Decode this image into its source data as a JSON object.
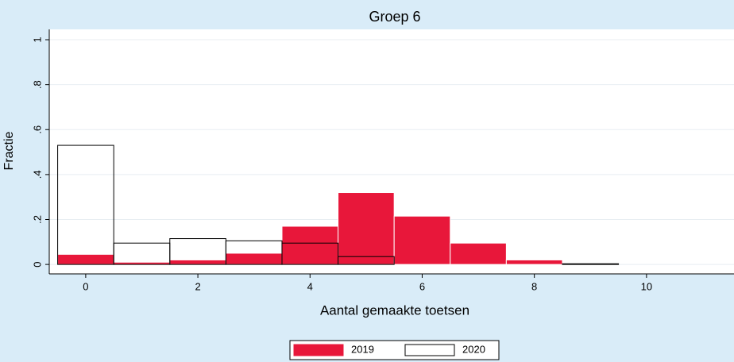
{
  "chart_data": {
    "type": "histogram",
    "title": "Groep 6",
    "x_label": "Aantal gemaakte toetsen",
    "y_label": "Fractie",
    "series": [
      {
        "name": "2019",
        "color": "#e8173a",
        "edgecolor": "#ffffff",
        "bins": [
          -0.5,
          0.5,
          1.5,
          2.5,
          3.5,
          4.5,
          5.5,
          6.5,
          7.5,
          8.5
        ],
        "values": [
          0.045,
          0.01,
          0.02,
          0.05,
          0.17,
          0.32,
          0.215,
          0.095,
          0.02
        ]
      },
      {
        "name": "2020",
        "color": "none",
        "edgecolor": "#000000",
        "bins": [
          -0.5,
          0.5,
          1.5,
          2.5,
          3.5,
          4.5,
          5.5,
          6.5,
          7.5,
          8.5,
          9.5
        ],
        "values": [
          0.53,
          0.095,
          0.115,
          0.105,
          0.095,
          0.035,
          0,
          0,
          0,
          0.003
        ]
      }
    ],
    "xlim": [
      -0.65,
      11.56
    ],
    "xticks": [
      0,
      2,
      4,
      6,
      8,
      10
    ],
    "ylim": [
      -0.042,
      1.046
    ],
    "yticks": [
      0,
      {
        "value": 0.2,
        "label": ".2"
      },
      {
        "value": 0.4,
        "label": ".4"
      },
      {
        "value": 0.6,
        "label": ".6"
      },
      {
        "value": 0.8,
        "label": ".8"
      },
      1
    ],
    "grid": true,
    "legend": "bottom"
  }
}
